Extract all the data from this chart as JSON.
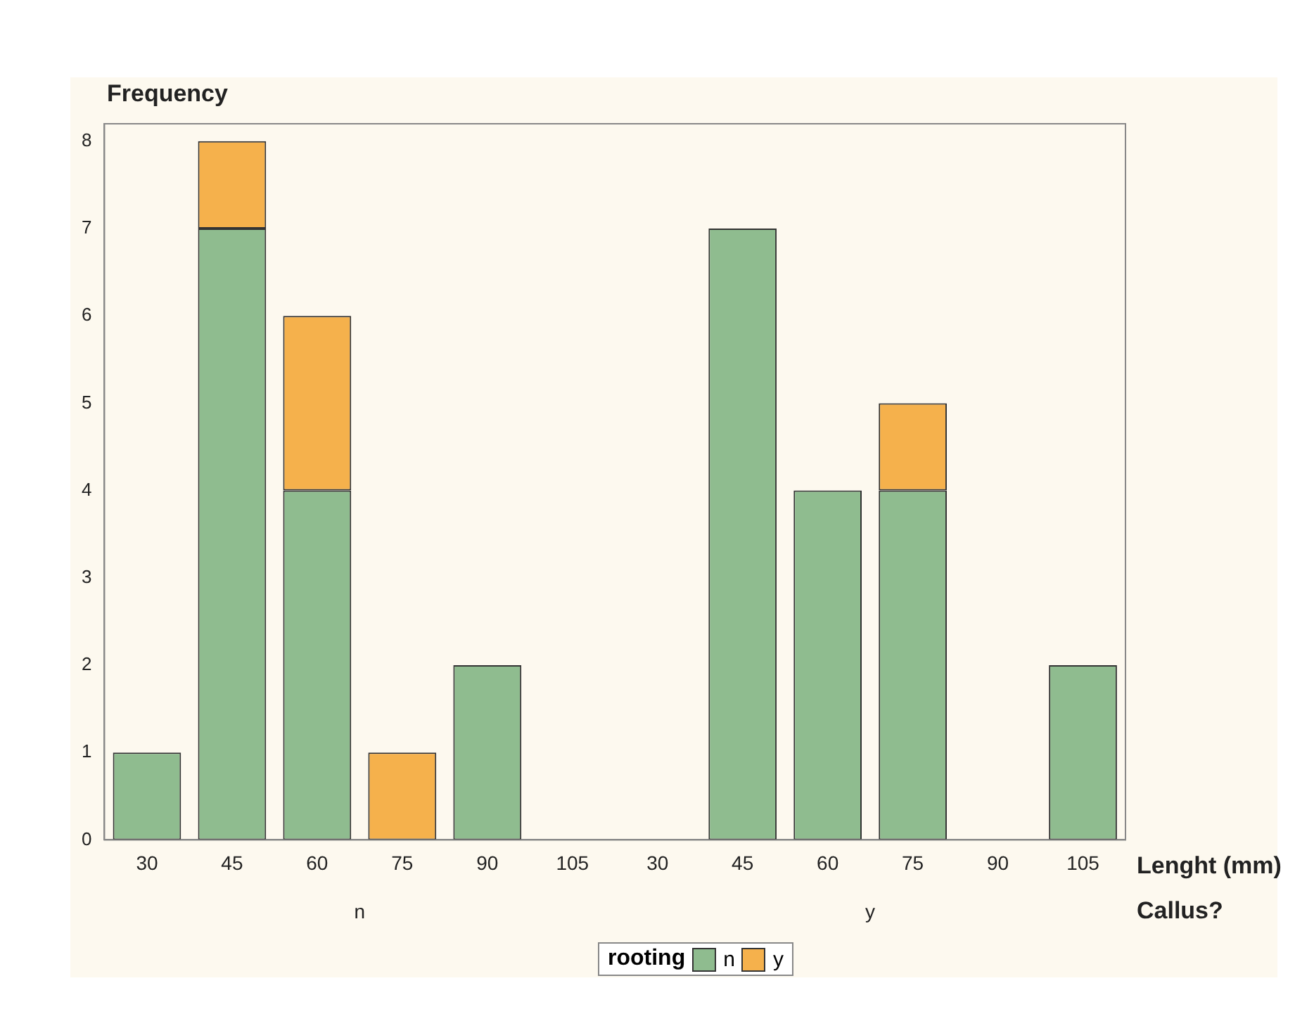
{
  "chart_data": {
    "type": "bar",
    "stacked": true,
    "ylabel": "Frequency",
    "xlabel": "Lenght (mm)",
    "legend_title": "rooting",
    "legend": "bottom",
    "grid": false,
    "categories": [
      "30",
      "45",
      "60",
      "75",
      "90",
      "105",
      "30",
      "45",
      "60",
      "75",
      "90",
      "105"
    ],
    "series": [
      {
        "name": "n",
        "color": "#8fbc8f",
        "values": [
          1,
          7,
          4,
          0,
          2,
          0,
          0,
          7,
          4,
          4,
          0,
          2
        ]
      },
      {
        "name": "y",
        "color": "#f5b14c",
        "values": [
          0,
          1,
          2,
          1,
          0,
          0,
          0,
          0,
          0,
          1,
          0,
          0
        ]
      }
    ],
    "ylim": [
      0,
      8.2
    ],
    "yticks": [
      0,
      1,
      2,
      3,
      4,
      5,
      6,
      7,
      8
    ],
    "annotations": [
      "n",
      "y",
      "Callus?"
    ]
  }
}
